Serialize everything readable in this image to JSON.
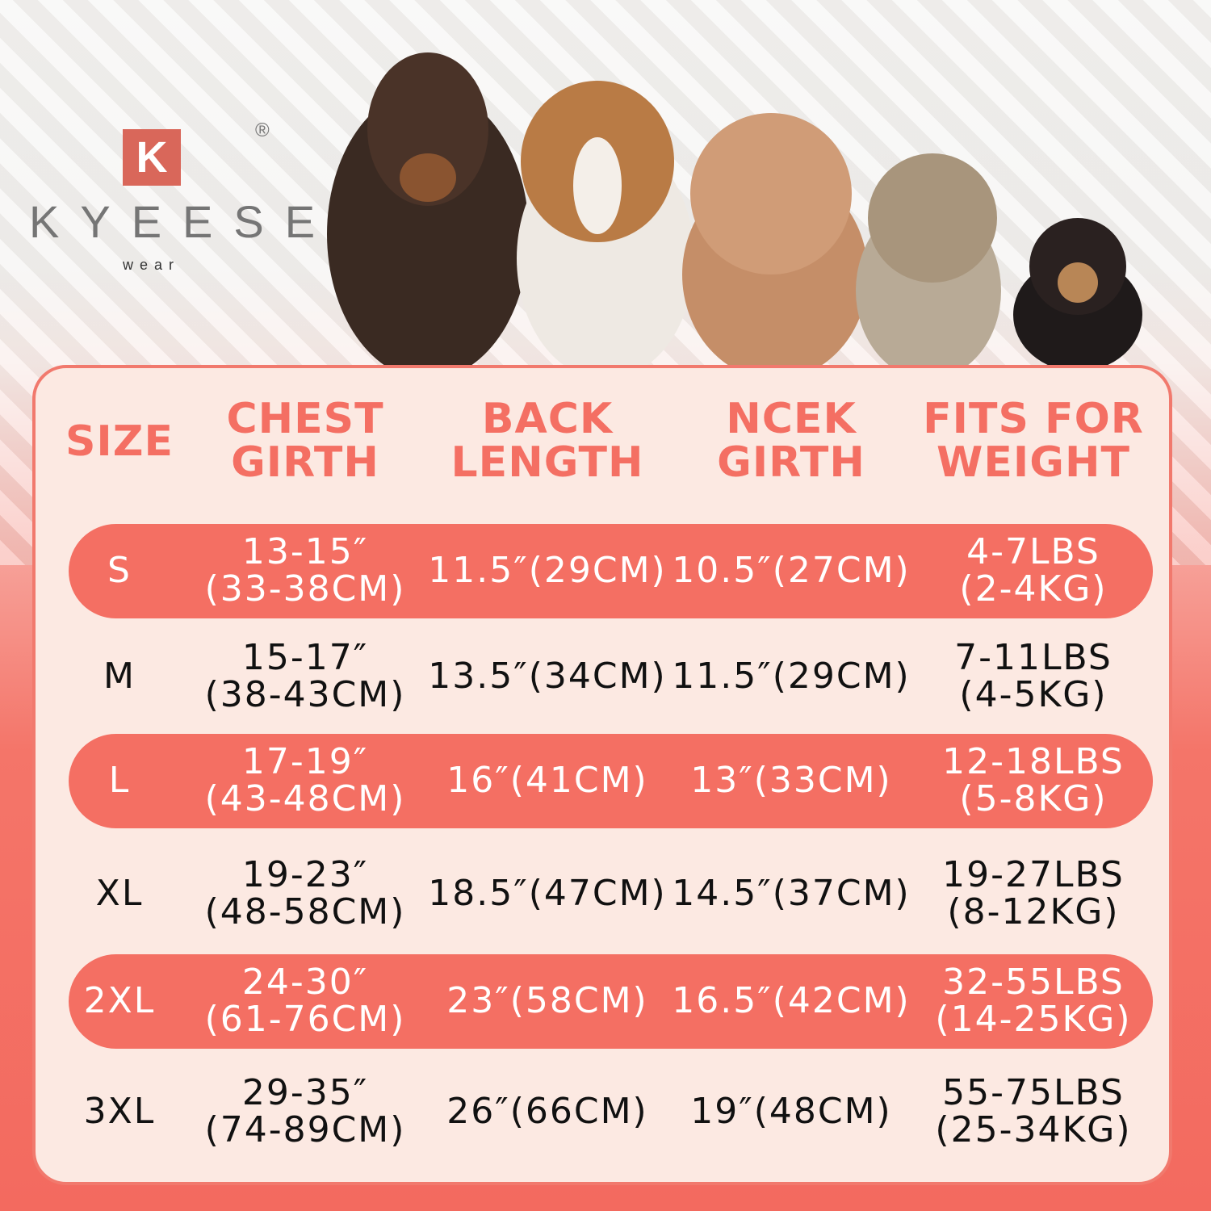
{
  "brand": {
    "logo_letter": "K",
    "name": "KYEESE",
    "sub": "wear",
    "registered": "®"
  },
  "colors": {
    "accent": "#f46f63",
    "panel": "#fce9e2",
    "logo": "#d9675a"
  },
  "table": {
    "headers": [
      [
        "SIZE"
      ],
      [
        "CHEST",
        "GIRTH"
      ],
      [
        "BACK",
        "LENGTH"
      ],
      [
        "NCEK",
        "GIRTH"
      ],
      [
        "FITS FOR",
        "WEIGHT"
      ]
    ],
    "rows": [
      {
        "size": "S",
        "chest": [
          "13-15″",
          "(33-38CM)"
        ],
        "back": "11.5″(29CM)",
        "neck": "10.5″(27CM)",
        "weight": [
          "4-7LBS",
          "(2-4KG)"
        ],
        "highlight": true
      },
      {
        "size": "M",
        "chest": [
          "15-17″",
          "(38-43CM)"
        ],
        "back": "13.5″(34CM)",
        "neck": "11.5″(29CM)",
        "weight": [
          "7-11LBS",
          "(4-5KG)"
        ],
        "highlight": false
      },
      {
        "size": "L",
        "chest": [
          "17-19″",
          "(43-48CM)"
        ],
        "back": "16″(41CM)",
        "neck": "13″(33CM)",
        "weight": [
          "12-18LBS",
          "(5-8KG)"
        ],
        "highlight": true
      },
      {
        "size": "XL",
        "chest": [
          "19-23″",
          "(48-58CM)"
        ],
        "back": "18.5″(47CM)",
        "neck": "14.5″(37CM)",
        "weight": [
          "19-27LBS",
          "(8-12KG)"
        ],
        "highlight": false
      },
      {
        "size": "2XL",
        "chest": [
          "24-30″",
          "(61-76CM)"
        ],
        "back": "23″(58CM)",
        "neck": "16.5″(42CM)",
        "weight": [
          "32-55LBS",
          "(14-25KG)"
        ],
        "highlight": true
      },
      {
        "size": "3XL",
        "chest": [
          "29-35″",
          "(74-89CM)"
        ],
        "back": "26″(66CM)",
        "neck": "19″(48CM)",
        "weight": [
          "55-75LBS",
          "(25-34KG)"
        ],
        "highlight": false
      }
    ]
  }
}
